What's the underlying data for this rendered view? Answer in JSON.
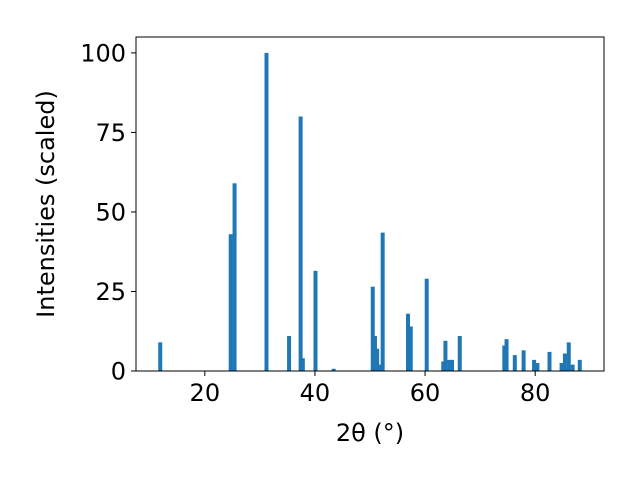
{
  "chart_data": {
    "type": "bar",
    "xlabel": "2θ (°)",
    "ylabel": "Intensities (scaled)",
    "xlim": [
      7.5,
      92.5
    ],
    "ylim": [
      0,
      105
    ],
    "xticks": [
      20,
      40,
      60,
      80
    ],
    "yticks": [
      0,
      25,
      50,
      75,
      100
    ],
    "grid": false,
    "bar_color": "#1f77b4",
    "bars": [
      {
        "x": 11.9,
        "y": 9
      },
      {
        "x": 24.7,
        "y": 43
      },
      {
        "x": 25.4,
        "y": 59
      },
      {
        "x": 31.2,
        "y": 100
      },
      {
        "x": 35.3,
        "y": 11
      },
      {
        "x": 37.4,
        "y": 80
      },
      {
        "x": 37.8,
        "y": 4
      },
      {
        "x": 40.1,
        "y": 31.5
      },
      {
        "x": 43.4,
        "y": 0.7
      },
      {
        "x": 50.5,
        "y": 26.5
      },
      {
        "x": 50.9,
        "y": 11
      },
      {
        "x": 51.3,
        "y": 7
      },
      {
        "x": 51.9,
        "y": 2
      },
      {
        "x": 52.3,
        "y": 43.5
      },
      {
        "x": 56.9,
        "y": 18
      },
      {
        "x": 57.4,
        "y": 14
      },
      {
        "x": 60.3,
        "y": 29
      },
      {
        "x": 63.3,
        "y": 3
      },
      {
        "x": 63.7,
        "y": 9.5
      },
      {
        "x": 64.4,
        "y": 3.5
      },
      {
        "x": 64.9,
        "y": 3.5
      },
      {
        "x": 66.3,
        "y": 11
      },
      {
        "x": 74.4,
        "y": 8
      },
      {
        "x": 74.8,
        "y": 10
      },
      {
        "x": 76.3,
        "y": 5
      },
      {
        "x": 77.9,
        "y": 6.5
      },
      {
        "x": 79.8,
        "y": 3.5
      },
      {
        "x": 80.4,
        "y": 2.5
      },
      {
        "x": 82.6,
        "y": 6
      },
      {
        "x": 84.8,
        "y": 2.5
      },
      {
        "x": 85.4,
        "y": 5.5
      },
      {
        "x": 86.1,
        "y": 9
      },
      {
        "x": 86.8,
        "y": 2
      },
      {
        "x": 88.1,
        "y": 3.5
      }
    ]
  }
}
